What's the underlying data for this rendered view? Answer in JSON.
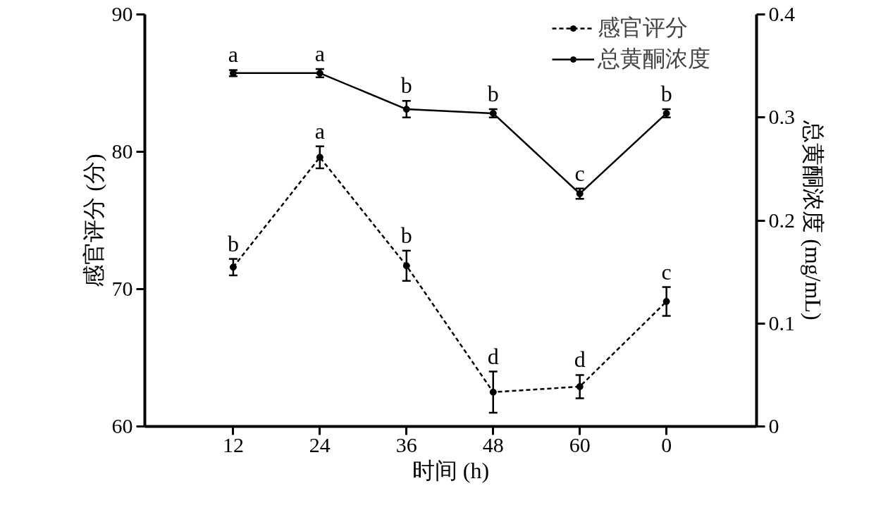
{
  "chart_data": {
    "type": "line",
    "xlabel": "时间 (h)",
    "ylabel": "感官评分 (分)",
    "y2label": "总黄酮浓度 (mg/mL)",
    "categories": [
      "12",
      "24",
      "36",
      "48",
      "60",
      "0"
    ],
    "ylim": [
      60,
      90
    ],
    "yticks": [
      60,
      70,
      80,
      90
    ],
    "y2lim": [
      0,
      0.4
    ],
    "y2ticks": [
      0,
      0.1,
      0.2,
      0.3,
      0.4
    ],
    "legend": "top right",
    "marker": "circle",
    "grid": false,
    "series": [
      {
        "name": "感官评分",
        "color": "#000000",
        "line_style": "dashed",
        "values": [
          71.6,
          79.6,
          71.7,
          62.5,
          62.9,
          69.1
        ],
        "errors": [
          0.6,
          0.8,
          1.1,
          1.5,
          0.85,
          1.05
        ],
        "value_labels": [
          "b",
          "a",
          "b",
          "d",
          "d",
          "c"
        ]
      },
      {
        "name": "总黄酮浓度",
        "color": "#000000",
        "line_style": "solid",
        "axis": "y2",
        "values": [
          0.343,
          0.343,
          0.308,
          0.304,
          0.226,
          0.304
        ],
        "errors": [
          0.003,
          0.004,
          0.008,
          0.004,
          0.005,
          0.004
        ],
        "value_labels": [
          "a",
          "a",
          "b",
          "b",
          "c",
          "b"
        ]
      }
    ]
  }
}
